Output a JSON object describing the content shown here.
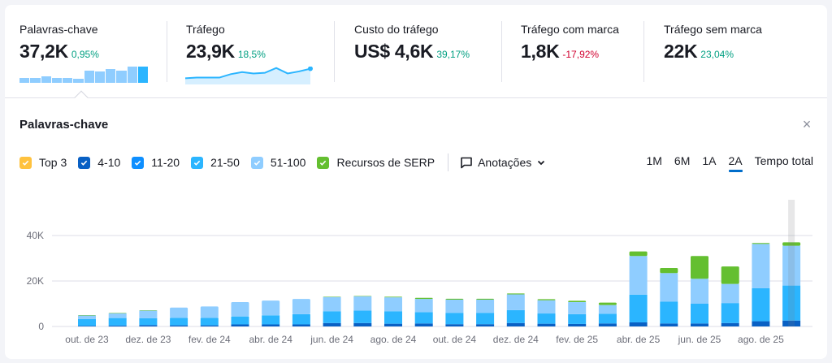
{
  "kpis": [
    {
      "label": "Palavras-chave",
      "value": "37,2K",
      "delta": "0,95%",
      "trend": "positive"
    },
    {
      "label": "Tráfego",
      "value": "23,9K",
      "delta": "18,5%",
      "trend": "positive"
    },
    {
      "label": "Custo do tráfego",
      "value": "US$ 4,6K",
      "delta": "39,17%",
      "trend": "positive"
    },
    {
      "label": "Tráfego com marca",
      "value": "1,8K",
      "delta": "-17,92%",
      "trend": "negative"
    },
    {
      "label": "Tráfego sem marca",
      "value": "22K",
      "delta": "23,04%",
      "trend": "positive"
    }
  ],
  "mini_bars": [
    4,
    4,
    5,
    4,
    4,
    3,
    10,
    9,
    11,
    10,
    13,
    13
  ],
  "mini_line": [
    9,
    10,
    10,
    10,
    15,
    18,
    16,
    17,
    24,
    16,
    19,
    23
  ],
  "section": {
    "title": "Palavras-chave",
    "close_label": "×"
  },
  "legend": [
    {
      "label": "Top 3",
      "color": "#ffc23e",
      "checked": true
    },
    {
      "label": "4-10",
      "color": "#0960c4",
      "checked": true
    },
    {
      "label": "11-20",
      "color": "#0e8fff",
      "checked": true
    },
    {
      "label": "21-50",
      "color": "#2bb5ff",
      "checked": true
    },
    {
      "label": "51-100",
      "color": "#8fcdff",
      "checked": true
    },
    {
      "label": "Recursos de SERP",
      "color": "#64bf30",
      "checked": true
    }
  ],
  "annotations": {
    "label": "Anotações"
  },
  "periods": [
    {
      "label": "1M",
      "active": false
    },
    {
      "label": "6M",
      "active": false
    },
    {
      "label": "1A",
      "active": false
    },
    {
      "label": "2A",
      "active": true
    },
    {
      "label": "Tempo total",
      "active": false
    }
  ],
  "colors": {
    "top3": "#ffc23e",
    "pos4_10": "#0960c4",
    "pos11_20": "#0e8fff",
    "pos21_50": "#2bb5ff",
    "pos51_100": "#8fcdff",
    "serp": "#64bf30",
    "grid": "#e8e9ef",
    "axis_text": "#6c6e79",
    "positive": "#009f81",
    "negative": "#d1002f",
    "active_tab": "#006dca"
  },
  "chart_data": {
    "type": "bar",
    "stacked": true,
    "title": "Palavras-chave",
    "xlabel": "",
    "ylabel": "",
    "ylim": [
      0,
      45000
    ],
    "yticks": [
      "0",
      "20K",
      "40K"
    ],
    "grid": true,
    "legend_position": "top",
    "x_tick_labels": [
      "out. de 23",
      "dez. de 23",
      "fev. de 24",
      "abr. de 24",
      "jun. de 24",
      "ago. de 24",
      "out. de 24",
      "dez. de 24",
      "fev. de 25",
      "abr. de 25",
      "jun. de 25",
      "ago. de 25"
    ],
    "categories": [
      "out. 23",
      "nov. 23",
      "dez. 23",
      "jan. 24",
      "fev. 24",
      "mar. 24",
      "abr. 24",
      "mai. 24",
      "jun. 24",
      "jul. 24",
      "ago. 24",
      "set. 24",
      "out. 24",
      "nov. 24",
      "dez. 24",
      "jan. 25",
      "fev. 25",
      "mar. 25",
      "abr. 25",
      "mai. 25",
      "jun. 25",
      "jul. 25",
      "ago. 25",
      "set. 25"
    ],
    "series": [
      {
        "name": "Top 3",
        "values": [
          0,
          0,
          0,
          0,
          0,
          0,
          0,
          0,
          0,
          0,
          0,
          0,
          0,
          0,
          0,
          0,
          0,
          0,
          0,
          0,
          0,
          0,
          0,
          0
        ]
      },
      {
        "name": "4-10",
        "values": [
          300,
          400,
          600,
          500,
          500,
          900,
          900,
          900,
          1500,
          1500,
          1200,
          1300,
          1000,
          1000,
          1500,
          1200,
          1100,
          1300,
          1800,
          1300,
          1300,
          1500,
          2300,
          2600
        ]
      },
      {
        "name": "11-20",
        "values": [
          3000,
          3300,
          3000,
          3300,
          3300,
          3500,
          4000,
          4500,
          5200,
          5500,
          5500,
          5000,
          5000,
          5000,
          5700,
          4500,
          4300,
          4300,
          12200,
          9600,
          8700,
          8800,
          14500,
          15400
        ]
      },
      {
        "name": "21-50",
        "values": [
          0,
          0,
          0,
          0,
          0,
          0,
          0,
          0,
          0,
          0,
          0,
          0,
          0,
          0,
          0,
          0,
          0,
          0,
          0,
          0,
          0,
          0,
          0,
          0
        ]
      },
      {
        "name": "51-100",
        "values": [
          1500,
          2100,
          3400,
          4500,
          5000,
          6300,
          6500,
          6700,
          6300,
          6300,
          6100,
          5800,
          5800,
          5800,
          6900,
          5800,
          5300,
          3800,
          17000,
          12600,
          11000,
          8400,
          19500,
          17500
        ]
      },
      {
        "name": "Recursos de SERP",
        "values": [
          200,
          200,
          100,
          0,
          0,
          0,
          0,
          0,
          100,
          100,
          300,
          500,
          400,
          400,
          400,
          500,
          600,
          1100,
          2000,
          2200,
          10000,
          7700,
          400,
          1500
        ]
      }
    ],
    "hover_index": 23
  }
}
